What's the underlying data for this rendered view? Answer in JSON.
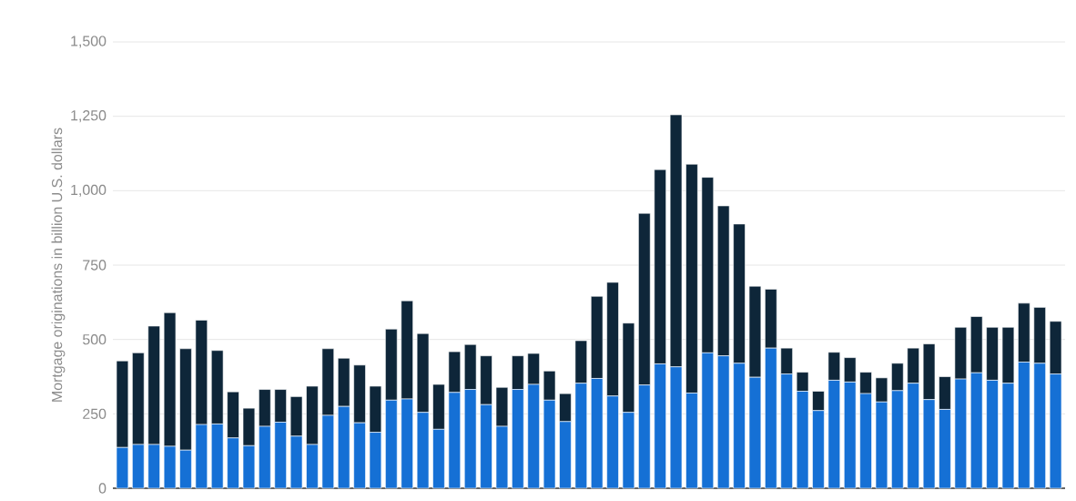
{
  "chart_data": {
    "type": "bar",
    "stacked": true,
    "ylabel": "Mortgage originations in billion U.S. dollars",
    "categories": [
      null,
      null,
      null,
      null,
      null,
      null,
      null,
      null,
      null,
      null,
      null,
      null,
      null,
      null,
      null,
      null,
      null,
      null,
      null,
      null,
      null,
      null,
      null,
      null,
      null,
      null,
      null,
      null,
      null,
      null,
      null,
      null,
      null,
      null,
      null,
      null,
      null,
      null,
      null,
      null,
      null,
      null,
      null,
      null,
      null,
      null,
      null,
      null,
      null,
      null,
      null,
      null,
      null,
      null,
      null,
      null,
      null,
      null,
      null,
      null
    ],
    "series": [
      {
        "color": "#1570d5",
        "values": [
          137,
          147,
          147,
          141,
          128,
          214,
          216,
          169,
          143,
          208,
          222,
          175,
          147,
          245,
          275,
          220,
          188,
          296,
          300,
          255,
          198,
          322,
          332,
          281,
          208,
          332,
          349,
          296,
          224,
          353,
          369,
          310,
          255,
          347,
          418,
          408,
          320,
          455,
          445,
          420,
          373,
          471,
          384,
          326,
          261,
          363,
          357,
          318,
          290,
          328,
          353,
          298,
          265,
          367,
          388,
          363,
          353,
          424,
          420,
          384
        ]
      },
      {
        "color": "#0e2639",
        "values": [
          291,
          308,
          398,
          449,
          341,
          351,
          247,
          155,
          126,
          124,
          110,
          133,
          196,
          224,
          162,
          194,
          155,
          239,
          330,
          265,
          151,
          137,
          151,
          164,
          131,
          113,
          104,
          98,
          94,
          143,
          276,
          382,
          300,
          577,
          653,
          847,
          769,
          590,
          504,
          468,
          306,
          198,
          87,
          64,
          65,
          94,
          82,
          72,
          81,
          92,
          118,
          187,
          110,
          174,
          189,
          178,
          188,
          198,
          188,
          177
        ]
      }
    ],
    "ylim": [
      0,
      1500
    ],
    "yticks": [
      {
        "value": 0,
        "label": "0"
      },
      {
        "value": 250,
        "label": "250"
      },
      {
        "value": 500,
        "label": "500"
      },
      {
        "value": 750,
        "label": "750"
      },
      {
        "value": 1000,
        "label": "1,000"
      },
      {
        "value": 1250,
        "label": "1,250"
      },
      {
        "value": 1500,
        "label": "1,500"
      }
    ],
    "grid": "y"
  }
}
